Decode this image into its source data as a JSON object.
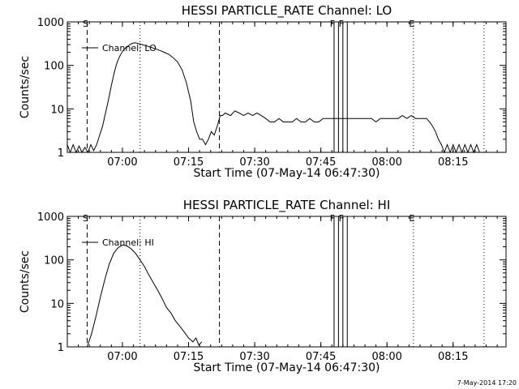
{
  "chart_data": [
    {
      "type": "line",
      "title": "HESSI PARTICLE_RATE Channel: LO",
      "xlabel": "Start Time (07-May-14 06:47:30)",
      "ylabel": "Counts/sec",
      "yscale": "log",
      "ylim": [
        1,
        1000
      ],
      "xlim": [
        "06:47:30",
        "08:27:00"
      ],
      "x_ticks": [
        "07:00",
        "07:15",
        "07:30",
        "07:45",
        "08:00",
        "08:15"
      ],
      "y_ticks": [
        "1",
        "10",
        "100",
        "1000"
      ],
      "grid": false,
      "legend": "top-left",
      "series": [
        {
          "name": "Channel: LO",
          "x": [
            "06:47:30",
            "06:48:10",
            "06:48:50",
            "06:49:30",
            "06:50:10",
            "06:50:50",
            "06:51:30",
            "06:52:10",
            "06:52:50",
            "06:53:30",
            "06:54:10",
            "06:54:50",
            "06:55:30",
            "06:56:10",
            "06:56:50",
            "06:57:30",
            "06:58:10",
            "06:58:50",
            "06:59:30",
            "07:00:10",
            "07:00:50",
            "07:01:30",
            "07:02:10",
            "07:02:50",
            "07:03:30",
            "07:04:30",
            "07:05:30",
            "07:06:30",
            "07:07:30",
            "07:08:30",
            "07:09:30",
            "07:10:30",
            "07:11:30",
            "07:12:30",
            "07:13:30",
            "07:14:30",
            "07:15:30",
            "07:16:10",
            "07:16:50",
            "07:17:30",
            "07:18:10",
            "07:18:50",
            "07:19:30",
            "07:20:10",
            "07:20:50",
            "07:21:30",
            "07:22:10",
            "07:22:40",
            "07:23:20",
            "07:24:30",
            "07:25:30",
            "07:26:30",
            "07:27:30",
            "07:28:30",
            "07:29:30",
            "07:30:30",
            "07:31:30",
            "07:32:30",
            "07:33:30",
            "07:34:30",
            "07:35:30",
            "07:36:30",
            "07:37:30",
            "07:38:30",
            "07:39:30",
            "07:40:30",
            "07:41:30",
            "07:42:30",
            "07:43:30",
            "07:44:30",
            "07:45:30",
            "07:46:30",
            "07:47:30",
            "07:48:30",
            "07:49:30",
            "07:50:30",
            "07:51:30",
            "07:52:30",
            "07:53:30",
            "07:54:30",
            "07:55:30",
            "07:56:30",
            "07:57:30",
            "07:58:30",
            "07:59:30",
            "08:00:30",
            "08:01:30",
            "08:02:30",
            "08:03:30",
            "08:04:30",
            "08:05:30",
            "08:06:30",
            "08:07:30",
            "08:08:30",
            "08:09:00",
            "08:09:40",
            "08:10:20",
            "08:11:00",
            "08:11:40",
            "08:12:20",
            "08:13:00",
            "08:13:40",
            "08:14:20",
            "08:15:00",
            "08:15:40",
            "08:16:20",
            "08:17:00",
            "08:17:40",
            "08:18:20",
            "08:19:00",
            "08:19:40",
            "08:20:20",
            "08:21:00"
          ],
          "values": [
            1.5,
            1.0,
            1.5,
            1.0,
            1.4,
            1.0,
            1.3,
            1.0,
            1.5,
            1.1,
            1.5,
            2.5,
            4,
            8,
            16,
            35,
            70,
            120,
            170,
            220,
            260,
            290,
            320,
            330,
            320,
            300,
            280,
            260,
            240,
            220,
            200,
            180,
            150,
            120,
            80,
            40,
            15,
            5,
            3,
            2,
            2,
            1.5,
            2,
            3,
            2.5,
            4,
            7,
            7,
            8,
            7,
            9,
            8,
            7,
            8,
            7,
            8,
            7,
            6,
            5,
            5,
            6,
            5,
            5,
            5,
            6,
            5,
            5,
            6,
            5,
            5,
            6,
            6,
            6,
            6,
            6,
            6,
            6,
            6,
            6,
            6,
            6,
            6,
            5,
            6,
            6,
            6,
            6,
            6,
            7,
            6,
            7,
            6,
            6,
            6,
            6,
            5,
            4,
            3,
            2,
            1.5,
            1.0,
            1.5,
            1.0,
            1.5,
            1.0,
            1.5,
            1.0,
            1.5,
            1.0,
            1.5,
            1.0,
            1.5,
            1.0
          ]
        }
      ],
      "markers": [
        {
          "label": "S",
          "time": "06:52:00",
          "style": "dashed"
        },
        {
          "label": "",
          "time": "07:04:00",
          "style": "dotted"
        },
        {
          "label": "",
          "time": "07:22:00",
          "style": "dashed"
        },
        {
          "label": "F",
          "time": "07:48:00",
          "style": "solid"
        },
        {
          "label": "",
          "time": "07:49:00",
          "style": "solid"
        },
        {
          "label": "F",
          "time": "07:50:00",
          "style": "solid"
        },
        {
          "label": "",
          "time": "07:51:00",
          "style": "solid"
        },
        {
          "label": "E",
          "time": "08:06:00",
          "style": "dotted"
        },
        {
          "label": "",
          "time": "08:22:00",
          "style": "dotted"
        }
      ]
    },
    {
      "type": "line",
      "title": "HESSI PARTICLE_RATE Channel: HI",
      "xlabel": "Start Time (07-May-14 06:47:30)",
      "ylabel": "Counts/sec",
      "yscale": "log",
      "ylim": [
        1,
        1000
      ],
      "xlim": [
        "06:47:30",
        "08:27:00"
      ],
      "x_ticks": [
        "07:00",
        "07:15",
        "07:30",
        "07:45",
        "08:00",
        "08:15"
      ],
      "y_ticks": [
        "1",
        "10",
        "100",
        "1000"
      ],
      "grid": false,
      "legend": "top-left",
      "series": [
        {
          "name": "Channel: HI",
          "x": [
            "06:52:00",
            "06:53:00",
            "06:54:00",
            "06:55:00",
            "06:56:00",
            "06:57:00",
            "06:58:00",
            "06:59:00",
            "07:00:00",
            "07:01:00",
            "07:02:00",
            "07:03:00",
            "07:04:00",
            "07:05:00",
            "07:06:00",
            "07:07:00",
            "07:08:00",
            "07:09:00",
            "07:10:00",
            "07:11:00",
            "07:12:00",
            "07:13:00",
            "07:14:00",
            "07:15:00",
            "07:16:00",
            "07:16:40",
            "07:17:20",
            "07:18:00"
          ],
          "values": [
            1.0,
            2,
            5,
            14,
            35,
            80,
            140,
            190,
            220,
            210,
            180,
            140,
            100,
            70,
            45,
            30,
            20,
            13,
            8,
            6,
            4,
            3,
            2.2,
            1.6,
            1.3,
            1.6,
            1.1,
            1.3
          ]
        }
      ],
      "markers": [
        {
          "label": "S",
          "time": "06:52:00",
          "style": "dashed"
        },
        {
          "label": "",
          "time": "07:04:00",
          "style": "dotted"
        },
        {
          "label": "",
          "time": "07:22:00",
          "style": "dashed"
        },
        {
          "label": "F",
          "time": "07:48:00",
          "style": "solid"
        },
        {
          "label": "",
          "time": "07:49:00",
          "style": "solid"
        },
        {
          "label": "F",
          "time": "07:50:00",
          "style": "solid"
        },
        {
          "label": "",
          "time": "07:51:00",
          "style": "solid"
        },
        {
          "label": "E",
          "time": "08:06:00",
          "style": "dotted"
        },
        {
          "label": "",
          "time": "08:22:00",
          "style": "dotted"
        }
      ]
    }
  ],
  "timestamp": "7-May-2014 17:20"
}
